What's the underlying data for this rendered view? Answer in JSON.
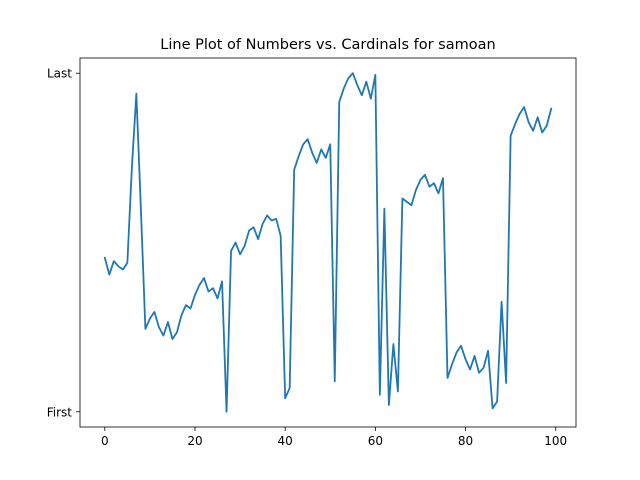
{
  "chart_data": {
    "type": "line",
    "title": "Line Plot of Numbers vs. Cardinals for samoan",
    "xlabel": "",
    "ylabel": "",
    "xlim": [
      -5.5,
      104.5
    ],
    "ylim": [
      -0.045,
      1.045
    ],
    "x_ticks": [
      0,
      20,
      40,
      60,
      80,
      100
    ],
    "y_ticks": [
      {
        "value": 0,
        "label": "First"
      },
      {
        "value": 1,
        "label": "Last"
      }
    ],
    "grid": false,
    "legend": "none",
    "colors": {
      "line": "#1f77b4",
      "axes": "#000000",
      "background": "#ffffff"
    },
    "series": [
      {
        "x": [
          0,
          1,
          2,
          3,
          4,
          5,
          6,
          7,
          8,
          9,
          10,
          11,
          12,
          13,
          14,
          15,
          16,
          17,
          18,
          19,
          20,
          21,
          22,
          23,
          24,
          25,
          26,
          27,
          28,
          29,
          30,
          31,
          32,
          33,
          34,
          35,
          36,
          37,
          38,
          39,
          40,
          41,
          42,
          43,
          44,
          45,
          46,
          47,
          48,
          49,
          50,
          51,
          52,
          53,
          54,
          55,
          56,
          57,
          58,
          59,
          60,
          61,
          62,
          63,
          64,
          65,
          66,
          67,
          68,
          69,
          70,
          71,
          72,
          73,
          74,
          75,
          76,
          77,
          78,
          79,
          80,
          81,
          82,
          83,
          84,
          85,
          86,
          87,
          88,
          89,
          90,
          91,
          92,
          93,
          94,
          95,
          96,
          97,
          98,
          99
        ],
        "values": [
          0.455,
          0.405,
          0.445,
          0.43,
          0.42,
          0.44,
          0.72,
          0.94,
          0.6,
          0.245,
          0.275,
          0.295,
          0.25,
          0.225,
          0.265,
          0.215,
          0.235,
          0.285,
          0.315,
          0.305,
          0.345,
          0.375,
          0.395,
          0.355,
          0.365,
          0.335,
          0.385,
          0.0,
          0.475,
          0.5,
          0.465,
          0.49,
          0.535,
          0.545,
          0.51,
          0.555,
          0.58,
          0.565,
          0.57,
          0.52,
          0.04,
          0.07,
          0.715,
          0.755,
          0.79,
          0.805,
          0.765,
          0.735,
          0.775,
          0.75,
          0.79,
          0.09,
          0.915,
          0.955,
          0.985,
          1.0,
          0.965,
          0.935,
          0.975,
          0.925,
          0.995,
          0.05,
          0.6,
          0.02,
          0.2,
          0.06,
          0.63,
          0.62,
          0.61,
          0.655,
          0.685,
          0.7,
          0.665,
          0.675,
          0.645,
          0.69,
          0.1,
          0.14,
          0.175,
          0.195,
          0.155,
          0.125,
          0.165,
          0.115,
          0.13,
          0.18,
          0.01,
          0.03,
          0.325,
          0.085,
          0.815,
          0.85,
          0.88,
          0.9,
          0.855,
          0.83,
          0.87,
          0.825,
          0.845,
          0.895
        ]
      }
    ]
  }
}
